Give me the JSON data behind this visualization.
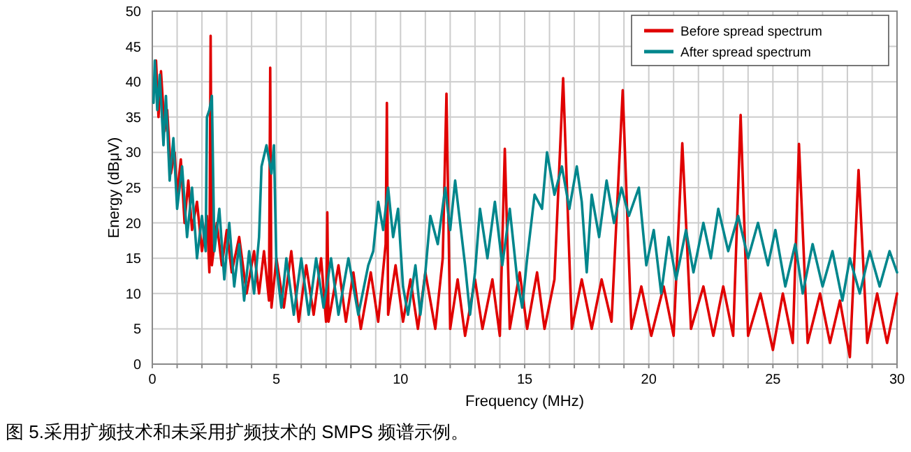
{
  "chart_data": {
    "type": "line",
    "xlabel": "Frequency (MHz)",
    "ylabel": "Energy (dBμV)",
    "xlim": [
      0,
      30
    ],
    "ylim": [
      0,
      50
    ],
    "xticks": [
      0,
      {
        "value": 1,
        "label": null
      },
      {
        "value": 2,
        "label": null
      },
      {
        "value": 3,
        "label": null
      },
      {
        "value": 4,
        "label": null
      },
      5,
      {
        "value": 6,
        "label": null
      },
      {
        "value": 7,
        "label": null
      },
      {
        "value": 8,
        "label": null
      },
      {
        "value": 9,
        "label": null
      },
      10,
      {
        "value": 11,
        "label": null
      },
      {
        "value": 12,
        "label": null
      },
      {
        "value": 13,
        "label": null
      },
      {
        "value": 14,
        "label": null
      },
      15,
      {
        "value": 16,
        "label": null
      },
      {
        "value": 17,
        "label": null
      },
      {
        "value": 18,
        "label": null
      },
      {
        "value": 19,
        "label": null
      },
      20,
      {
        "value": 21,
        "label": null
      },
      {
        "value": 22,
        "label": null
      },
      {
        "value": 23,
        "label": null
      },
      {
        "value": 24,
        "label": null
      },
      25,
      {
        "value": 26,
        "label": null
      },
      {
        "value": 27,
        "label": null
      },
      {
        "value": 28,
        "label": null
      },
      {
        "value": 29,
        "label": null
      },
      30
    ],
    "yticks": [
      0,
      5,
      10,
      15,
      20,
      25,
      30,
      35,
      40,
      45,
      50
    ],
    "grid": true,
    "legend": "top right",
    "marker": "none",
    "line_style": "solid",
    "annotations": [
      "图 5.采用扩频技术和未采用扩频技术的 SMPS 频谱示例。"
    ],
    "series": [
      {
        "name": "Before spread spectrum",
        "color": "#e00000",
        "x": [
          0.15,
          0.25,
          0.35,
          0.5,
          0.6,
          0.75,
          0.9,
          1.0,
          1.15,
          1.3,
          1.45,
          1.6,
          1.8,
          2.0,
          2.2,
          2.3,
          2.35,
          2.4,
          2.6,
          2.8,
          3.0,
          3.2,
          3.5,
          3.8,
          4.1,
          4.3,
          4.5,
          4.7,
          4.75,
          4.8,
          5.0,
          5.3,
          5.6,
          5.9,
          6.2,
          6.5,
          6.8,
          7.0,
          7.05,
          7.1,
          7.5,
          7.8,
          8.1,
          8.4,
          8.8,
          9.1,
          9.4,
          9.45,
          9.5,
          9.8,
          10.1,
          10.4,
          10.7,
          11.0,
          11.4,
          11.7,
          11.85,
          12.0,
          12.3,
          12.6,
          13.0,
          13.3,
          13.7,
          14.0,
          14.2,
          14.4,
          14.8,
          15.1,
          15.5,
          15.8,
          16.2,
          16.55,
          16.9,
          17.3,
          17.7,
          18.1,
          18.5,
          18.95,
          19.3,
          19.7,
          20.1,
          20.6,
          21.0,
          21.35,
          21.7,
          22.2,
          22.6,
          23.0,
          23.4,
          23.7,
          24.0,
          24.5,
          25.0,
          25.4,
          25.8,
          26.05,
          26.4,
          26.9,
          27.3,
          27.7,
          28.1,
          28.45,
          28.8,
          29.2,
          29.6,
          30.0
        ],
        "values": [
          43,
          35,
          41.5,
          33,
          36,
          27,
          30,
          24,
          29,
          20,
          26,
          19,
          23,
          16,
          21,
          13,
          46.5,
          14,
          20,
          14,
          19,
          13,
          18,
          10,
          16,
          10,
          16,
          9,
          42,
          8,
          15,
          8,
          16,
          6,
          14,
          7,
          15,
          6,
          21.5,
          6,
          14,
          6,
          13,
          5,
          13,
          6,
          17,
          37,
          7,
          14,
          6,
          12,
          5,
          13,
          5,
          15,
          38.3,
          5,
          12,
          4,
          12,
          5,
          12,
          4,
          30.5,
          5,
          13,
          5,
          13,
          5,
          12,
          40.5,
          5,
          12,
          5,
          12,
          6,
          38.8,
          5,
          11,
          4,
          11,
          4,
          31.3,
          5,
          11,
          4,
          11,
          4,
          35.3,
          4,
          10,
          2,
          10,
          3,
          31.2,
          3,
          10,
          3,
          9,
          1,
          27.5,
          3,
          10,
          3,
          10
        ]
      },
      {
        "name": "After spread spectrum",
        "color": "#00868c",
        "x": [
          0.05,
          0.1,
          0.2,
          0.3,
          0.45,
          0.55,
          0.7,
          0.85,
          1.0,
          1.2,
          1.4,
          1.6,
          1.8,
          2.0,
          2.15,
          2.2,
          2.3,
          2.4,
          2.5,
          2.7,
          2.9,
          3.1,
          3.3,
          3.5,
          3.7,
          3.9,
          4.1,
          4.3,
          4.4,
          4.6,
          4.8,
          4.9,
          5.0,
          5.2,
          5.4,
          5.7,
          6.0,
          6.3,
          6.6,
          6.9,
          7.2,
          7.5,
          7.9,
          8.3,
          8.7,
          8.9,
          9.1,
          9.3,
          9.5,
          9.7,
          9.9,
          10.1,
          10.3,
          10.6,
          10.8,
          11.0,
          11.2,
          11.5,
          11.8,
          12.0,
          12.2,
          12.4,
          12.6,
          12.8,
          13.0,
          13.2,
          13.5,
          13.8,
          14.1,
          14.4,
          14.7,
          14.9,
          15.1,
          15.4,
          15.7,
          15.9,
          16.2,
          16.5,
          16.8,
          17.1,
          17.3,
          17.5,
          17.7,
          18.0,
          18.3,
          18.6,
          18.9,
          19.2,
          19.6,
          19.9,
          20.2,
          20.5,
          20.8,
          21.1,
          21.5,
          21.8,
          22.2,
          22.5,
          22.8,
          23.2,
          23.6,
          24.0,
          24.4,
          24.8,
          25.1,
          25.5,
          25.9,
          26.2,
          26.6,
          27.0,
          27.4,
          27.8,
          28.1,
          28.5,
          28.9,
          29.3,
          29.7,
          30.0
        ],
        "values": [
          37,
          43,
          36,
          41,
          31,
          38,
          26,
          32,
          22,
          28,
          18,
          25,
          15,
          21,
          16,
          35,
          36,
          38,
          16,
          22,
          12,
          20,
          11,
          17,
          9,
          16,
          10,
          18,
          28,
          31,
          27,
          31,
          14,
          8,
          15,
          7,
          15,
          7,
          15,
          8,
          15,
          7,
          15,
          7,
          14,
          16,
          23,
          19,
          25,
          18,
          22,
          11,
          7,
          14,
          7,
          13,
          21,
          17,
          25,
          19,
          26,
          20,
          14,
          7,
          13,
          22,
          15,
          23,
          14,
          22,
          12,
          8,
          15,
          24,
          22,
          30,
          24,
          28,
          22,
          28,
          23,
          13,
          24,
          18,
          26,
          20,
          25,
          21,
          25,
          14,
          19,
          10,
          18,
          12,
          19,
          13,
          20,
          15,
          22,
          16,
          21,
          15,
          20,
          14,
          19,
          11,
          17,
          10,
          17,
          11,
          16,
          9,
          15,
          10,
          16,
          11,
          16,
          13
        ]
      }
    ]
  }
}
